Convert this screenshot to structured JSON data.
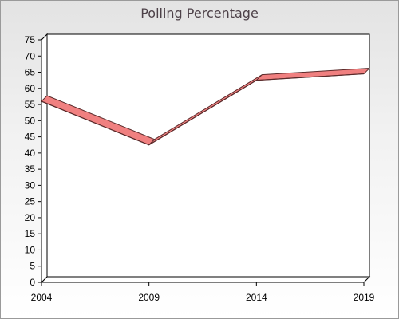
{
  "chart_data": {
    "type": "line",
    "title": "Polling Percentage",
    "xlabel": "",
    "ylabel": "",
    "x": [
      "2004",
      "2009",
      "2014",
      "2019"
    ],
    "series": [
      {
        "values": [
          56,
          42.5,
          62.5,
          64.5
        ]
      }
    ],
    "ylim": [
      0,
      75
    ],
    "yticks": [
      "0",
      "5",
      "10",
      "15",
      "20",
      "25",
      "30",
      "35",
      "40",
      "45",
      "50",
      "55",
      "60",
      "65",
      "70",
      "75"
    ],
    "grid": false,
    "legend": "none",
    "colors": {
      "line": "#f08080",
      "line_edge": "#5a2a2a",
      "axis": "#000000"
    }
  }
}
